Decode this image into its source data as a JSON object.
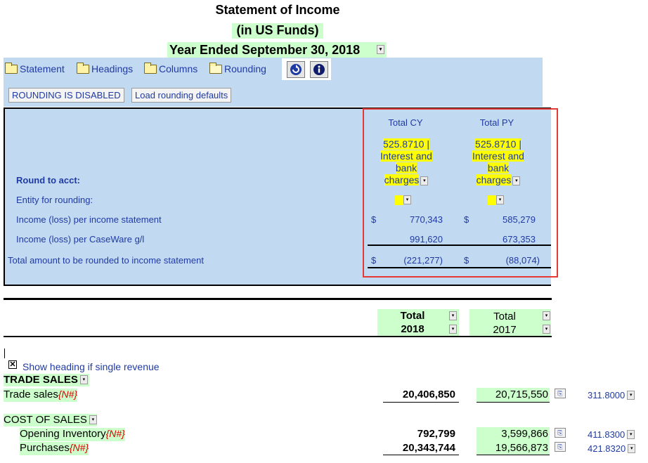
{
  "header": {
    "title": "Statement of Income",
    "subtitle": "(in US Funds)",
    "period": "Year Ended September 30, 2018"
  },
  "tabs": [
    {
      "label": "Statement",
      "icon": "folder-icon"
    },
    {
      "label": "Headings",
      "icon": "folder-icon"
    },
    {
      "label": "Columns",
      "icon": "folder-icon"
    },
    {
      "label": "Rounding",
      "icon": "folder-open-icon"
    }
  ],
  "toolbar_icons": [
    "refresh-icon",
    "info-icon"
  ],
  "rounding": {
    "disabled_button": "ROUNDING IS DISABLED",
    "defaults_button": "Load rounding defaults",
    "col_cy": "Total CY",
    "col_py": "Total PY",
    "account_cy": [
      "525.8710 |",
      "Interest and",
      "bank",
      "charges"
    ],
    "account_py": [
      "525.8710 |",
      "Interest and",
      "bank",
      "charges"
    ],
    "round_to_acct_label": "Round to acct:",
    "entity_label": "Entity for rounding:",
    "income_stmt_label": "Income (loss) per income statement",
    "income_gl_label": "Income (loss) per CaseWare g/l",
    "total_label": "Total amount to be rounded to income statement",
    "currency": "$",
    "income_stmt_cy": "770,343",
    "income_stmt_py": "585,279",
    "income_gl_cy": "991,620",
    "income_gl_py": "673,353",
    "total_cy": "(221,277)",
    "total_py": "(88,074)"
  },
  "columns": {
    "cy_line1": "Total",
    "cy_line2": "2018",
    "py_line1": "Total",
    "py_line2": "2017"
  },
  "statement": {
    "show_heading_checkbox": "Show heading if single revenue",
    "checkbox_checked": true,
    "trade_sales_heading": "TRADE SALES",
    "trade_sales_label": "Trade sales",
    "note_marker": "{N#}",
    "trade_sales_cy": "20,406,850",
    "trade_sales_py": "20,715,550",
    "trade_sales_acct": "311.8000",
    "cost_heading": "COST OF SALES",
    "opening_label": "Opening Inventory",
    "opening_cy": "792,799",
    "opening_py": "3,599,866",
    "opening_acct": "411.8300",
    "purchases_label": "Purchases",
    "purchases_cy": "20,343,744",
    "purchases_py": "19,566,873",
    "purchases_acct": "421.8320"
  },
  "colors": {
    "panel": "#c2d9f2",
    "highlight": "#ffff00",
    "input_green": "#ccffcc",
    "selection_outline": "#e53935",
    "link_blue": "#1f3aa3"
  }
}
